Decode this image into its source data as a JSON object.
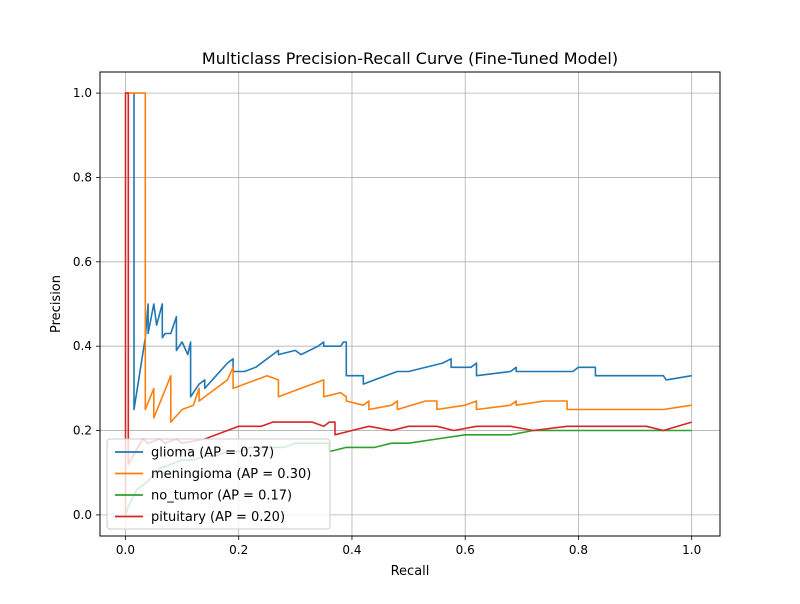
{
  "chart_data": {
    "type": "line",
    "title": "Multiclass Precision-Recall Curve (Fine-Tuned Model)",
    "xlabel": "Recall",
    "ylabel": "Precision",
    "xlim": [
      -0.045,
      1.05
    ],
    "ylim": [
      -0.05,
      1.05
    ],
    "xticks": [
      0.0,
      0.2,
      0.4,
      0.6,
      0.8,
      1.0
    ],
    "xtick_labels": [
      "0.0",
      "0.2",
      "0.4",
      "0.6",
      "0.8",
      "1.0"
    ],
    "yticks": [
      0.0,
      0.2,
      0.4,
      0.6,
      0.8,
      1.0
    ],
    "ytick_labels": [
      "0.0",
      "0.2",
      "0.4",
      "0.6",
      "0.8",
      "1.0"
    ],
    "grid": true,
    "legend_position": "lower-left",
    "series": [
      {
        "name": "glioma",
        "legend_label": "glioma (AP = 0.37)",
        "color": "#1f77b4",
        "x": [
          0.015,
          0.015,
          0.015,
          0.035,
          0.04,
          0.04,
          0.05,
          0.055,
          0.065,
          0.065,
          0.07,
          0.08,
          0.09,
          0.09,
          0.1,
          0.11,
          0.115,
          0.115,
          0.13,
          0.14,
          0.14,
          0.16,
          0.18,
          0.19,
          0.19,
          0.2,
          0.21,
          0.23,
          0.26,
          0.27,
          0.27,
          0.3,
          0.31,
          0.34,
          0.35,
          0.35,
          0.37,
          0.38,
          0.385,
          0.39,
          0.39,
          0.41,
          0.42,
          0.42,
          0.44,
          0.48,
          0.5,
          0.56,
          0.575,
          0.575,
          0.61,
          0.62,
          0.62,
          0.68,
          0.69,
          0.69,
          0.74,
          0.74,
          0.79,
          0.8,
          0.82,
          0.83,
          0.83,
          0.88,
          0.9,
          0.95,
          0.955,
          1.0
        ],
        "y": [
          1.0,
          0.25,
          0.25,
          0.42,
          0.5,
          0.43,
          0.5,
          0.45,
          0.5,
          0.42,
          0.43,
          0.43,
          0.47,
          0.39,
          0.41,
          0.38,
          0.41,
          0.28,
          0.31,
          0.32,
          0.3,
          0.33,
          0.36,
          0.37,
          0.34,
          0.34,
          0.34,
          0.35,
          0.38,
          0.39,
          0.38,
          0.39,
          0.38,
          0.4,
          0.41,
          0.4,
          0.4,
          0.4,
          0.41,
          0.41,
          0.33,
          0.33,
          0.33,
          0.31,
          0.32,
          0.34,
          0.34,
          0.36,
          0.37,
          0.35,
          0.35,
          0.36,
          0.33,
          0.34,
          0.35,
          0.34,
          0.34,
          0.34,
          0.34,
          0.35,
          0.35,
          0.35,
          0.33,
          0.33,
          0.33,
          0.33,
          0.32,
          0.33
        ]
      },
      {
        "name": "meningioma",
        "legend_label": "meningioma (AP = 0.30)",
        "color": "#ff7f0e",
        "x": [
          0.0,
          0.0,
          0.035,
          0.035,
          0.05,
          0.05,
          0.08,
          0.08,
          0.1,
          0.12,
          0.13,
          0.13,
          0.18,
          0.19,
          0.19,
          0.25,
          0.27,
          0.27,
          0.33,
          0.35,
          0.35,
          0.38,
          0.39,
          0.39,
          0.42,
          0.43,
          0.43,
          0.47,
          0.48,
          0.48,
          0.53,
          0.55,
          0.55,
          0.6,
          0.62,
          0.62,
          0.68,
          0.69,
          0.69,
          0.74,
          0.78,
          0.78,
          0.8,
          0.82,
          0.9,
          0.9,
          0.95,
          0.95,
          1.0
        ],
        "y": [
          1.0,
          1.0,
          1.0,
          0.25,
          0.3,
          0.23,
          0.33,
          0.22,
          0.25,
          0.26,
          0.3,
          0.27,
          0.32,
          0.35,
          0.3,
          0.33,
          0.32,
          0.28,
          0.31,
          0.32,
          0.28,
          0.29,
          0.28,
          0.27,
          0.26,
          0.27,
          0.25,
          0.26,
          0.27,
          0.25,
          0.27,
          0.27,
          0.25,
          0.26,
          0.27,
          0.25,
          0.26,
          0.27,
          0.26,
          0.27,
          0.27,
          0.25,
          0.25,
          0.25,
          0.25,
          0.25,
          0.25,
          0.25,
          0.26
        ]
      },
      {
        "name": "no_tumor",
        "legend_label": "no_tumor (AP = 0.17)",
        "color": "#2ca02c",
        "x": [
          0.0,
          0.005,
          0.02,
          0.04,
          0.06,
          0.08,
          0.1,
          0.12,
          0.14,
          0.16,
          0.18,
          0.2,
          0.22,
          0.24,
          0.26,
          0.28,
          0.3,
          0.32,
          0.34,
          0.35,
          0.36,
          0.36,
          0.39,
          0.4,
          0.44,
          0.47,
          0.5,
          0.55,
          0.6,
          0.64,
          0.68,
          0.72,
          0.76,
          0.8,
          0.85,
          0.9,
          0.95,
          1.0
        ],
        "y": [
          0.0,
          0.02,
          0.06,
          0.08,
          0.11,
          0.12,
          0.13,
          0.13,
          0.14,
          0.14,
          0.15,
          0.15,
          0.16,
          0.16,
          0.16,
          0.16,
          0.17,
          0.17,
          0.17,
          0.17,
          0.17,
          0.15,
          0.16,
          0.16,
          0.16,
          0.17,
          0.17,
          0.18,
          0.19,
          0.19,
          0.19,
          0.2,
          0.2,
          0.2,
          0.2,
          0.2,
          0.2,
          0.2
        ]
      },
      {
        "name": "pituitary",
        "legend_label": "pituitary (AP = 0.20)",
        "color": "#d62728",
        "x": [
          0.0,
          0.0,
          0.005,
          0.005,
          0.03,
          0.04,
          0.06,
          0.07,
          0.09,
          0.1,
          0.14,
          0.16,
          0.18,
          0.2,
          0.22,
          0.24,
          0.26,
          0.28,
          0.3,
          0.33,
          0.35,
          0.36,
          0.37,
          0.37,
          0.4,
          0.43,
          0.47,
          0.5,
          0.55,
          0.58,
          0.62,
          0.68,
          0.72,
          0.78,
          0.83,
          0.88,
          0.92,
          0.95,
          1.0
        ],
        "y": [
          0.0,
          1.0,
          1.0,
          0.12,
          0.18,
          0.17,
          0.18,
          0.17,
          0.18,
          0.17,
          0.18,
          0.19,
          0.2,
          0.21,
          0.21,
          0.21,
          0.22,
          0.22,
          0.22,
          0.22,
          0.21,
          0.22,
          0.22,
          0.19,
          0.2,
          0.21,
          0.2,
          0.21,
          0.21,
          0.2,
          0.21,
          0.21,
          0.2,
          0.21,
          0.21,
          0.21,
          0.21,
          0.2,
          0.22
        ]
      }
    ]
  }
}
